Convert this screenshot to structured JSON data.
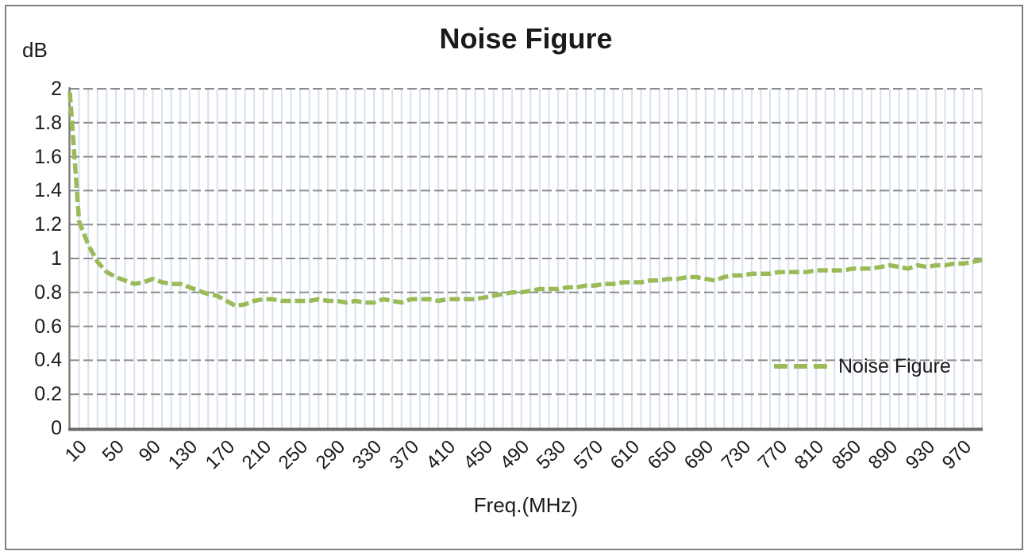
{
  "chart_data": {
    "type": "line",
    "title": "Noise Figure",
    "x_axis_label": "Freq.(MHz)",
    "y_axis_unit_label": "dB",
    "legend": {
      "label": "Noise Figure",
      "position": "right-middle-inside-plot"
    },
    "x_range": [
      10,
      1000
    ],
    "y_range": [
      0,
      2
    ],
    "x_grid_step_mhz": 10,
    "x_tick_labels": [
      "10",
      "50",
      "90",
      "130",
      "170",
      "210",
      "250",
      "290",
      "330",
      "370",
      "410",
      "450",
      "490",
      "530",
      "570",
      "610",
      "650",
      "690",
      "730",
      "770",
      "810",
      "850",
      "890",
      "930",
      "970"
    ],
    "y_tick_labels": [
      "0",
      "0.2",
      "0.4",
      "0.6",
      "0.8",
      "1",
      "1.2",
      "1.4",
      "1.6",
      "1.8",
      "2"
    ],
    "grid": {
      "horizontal_style": "dashed",
      "vertical_style": "solid",
      "legend_border": "none"
    },
    "series": [
      {
        "name": "Noise Figure",
        "line_style": "dashed",
        "color": "#9BBB59",
        "x_mhz": [
          10,
          20,
          30,
          40,
          50,
          60,
          70,
          80,
          90,
          100,
          110,
          120,
          130,
          140,
          150,
          160,
          170,
          180,
          190,
          200,
          210,
          220,
          230,
          240,
          250,
          260,
          270,
          280,
          290,
          300,
          310,
          320,
          330,
          340,
          350,
          360,
          370,
          380,
          390,
          400,
          410,
          420,
          430,
          440,
          450,
          460,
          470,
          480,
          490,
          500,
          510,
          520,
          530,
          540,
          550,
          560,
          570,
          580,
          590,
          600,
          610,
          620,
          630,
          640,
          650,
          660,
          670,
          680,
          690,
          700,
          710,
          720,
          730,
          740,
          750,
          760,
          770,
          780,
          790,
          800,
          810,
          820,
          830,
          840,
          850,
          860,
          870,
          880,
          890,
          900,
          910,
          920,
          930,
          940,
          950,
          960,
          970,
          980,
          990,
          1000
        ],
        "values_db": [
          1.98,
          1.22,
          1.08,
          0.98,
          0.92,
          0.89,
          0.87,
          0.85,
          0.86,
          0.88,
          0.86,
          0.85,
          0.85,
          0.83,
          0.81,
          0.79,
          0.78,
          0.75,
          0.72,
          0.73,
          0.75,
          0.76,
          0.76,
          0.75,
          0.75,
          0.75,
          0.75,
          0.76,
          0.75,
          0.75,
          0.74,
          0.75,
          0.74,
          0.74,
          0.76,
          0.75,
          0.74,
          0.76,
          0.76,
          0.76,
          0.75,
          0.76,
          0.76,
          0.76,
          0.76,
          0.77,
          0.78,
          0.79,
          0.8,
          0.8,
          0.81,
          0.82,
          0.82,
          0.82,
          0.83,
          0.83,
          0.84,
          0.84,
          0.85,
          0.85,
          0.86,
          0.86,
          0.86,
          0.87,
          0.87,
          0.88,
          0.88,
          0.89,
          0.89,
          0.88,
          0.87,
          0.89,
          0.9,
          0.9,
          0.91,
          0.91,
          0.91,
          0.92,
          0.92,
          0.92,
          0.92,
          0.93,
          0.93,
          0.93,
          0.93,
          0.94,
          0.94,
          0.94,
          0.95,
          0.96,
          0.95,
          0.94,
          0.96,
          0.95,
          0.96,
          0.96,
          0.97,
          0.97,
          0.98,
          0.99
        ]
      }
    ],
    "colors": {
      "series_green": "#9BBB59",
      "horizontal_gridline": "#8C8C8C",
      "vertical_gridline": "#D7E1F0",
      "y_axis_line": "#7F7F7F",
      "x_axis_line": "#6B6B6B",
      "outer_border": "#7F7F7F",
      "text": "#1A1A1A"
    }
  }
}
